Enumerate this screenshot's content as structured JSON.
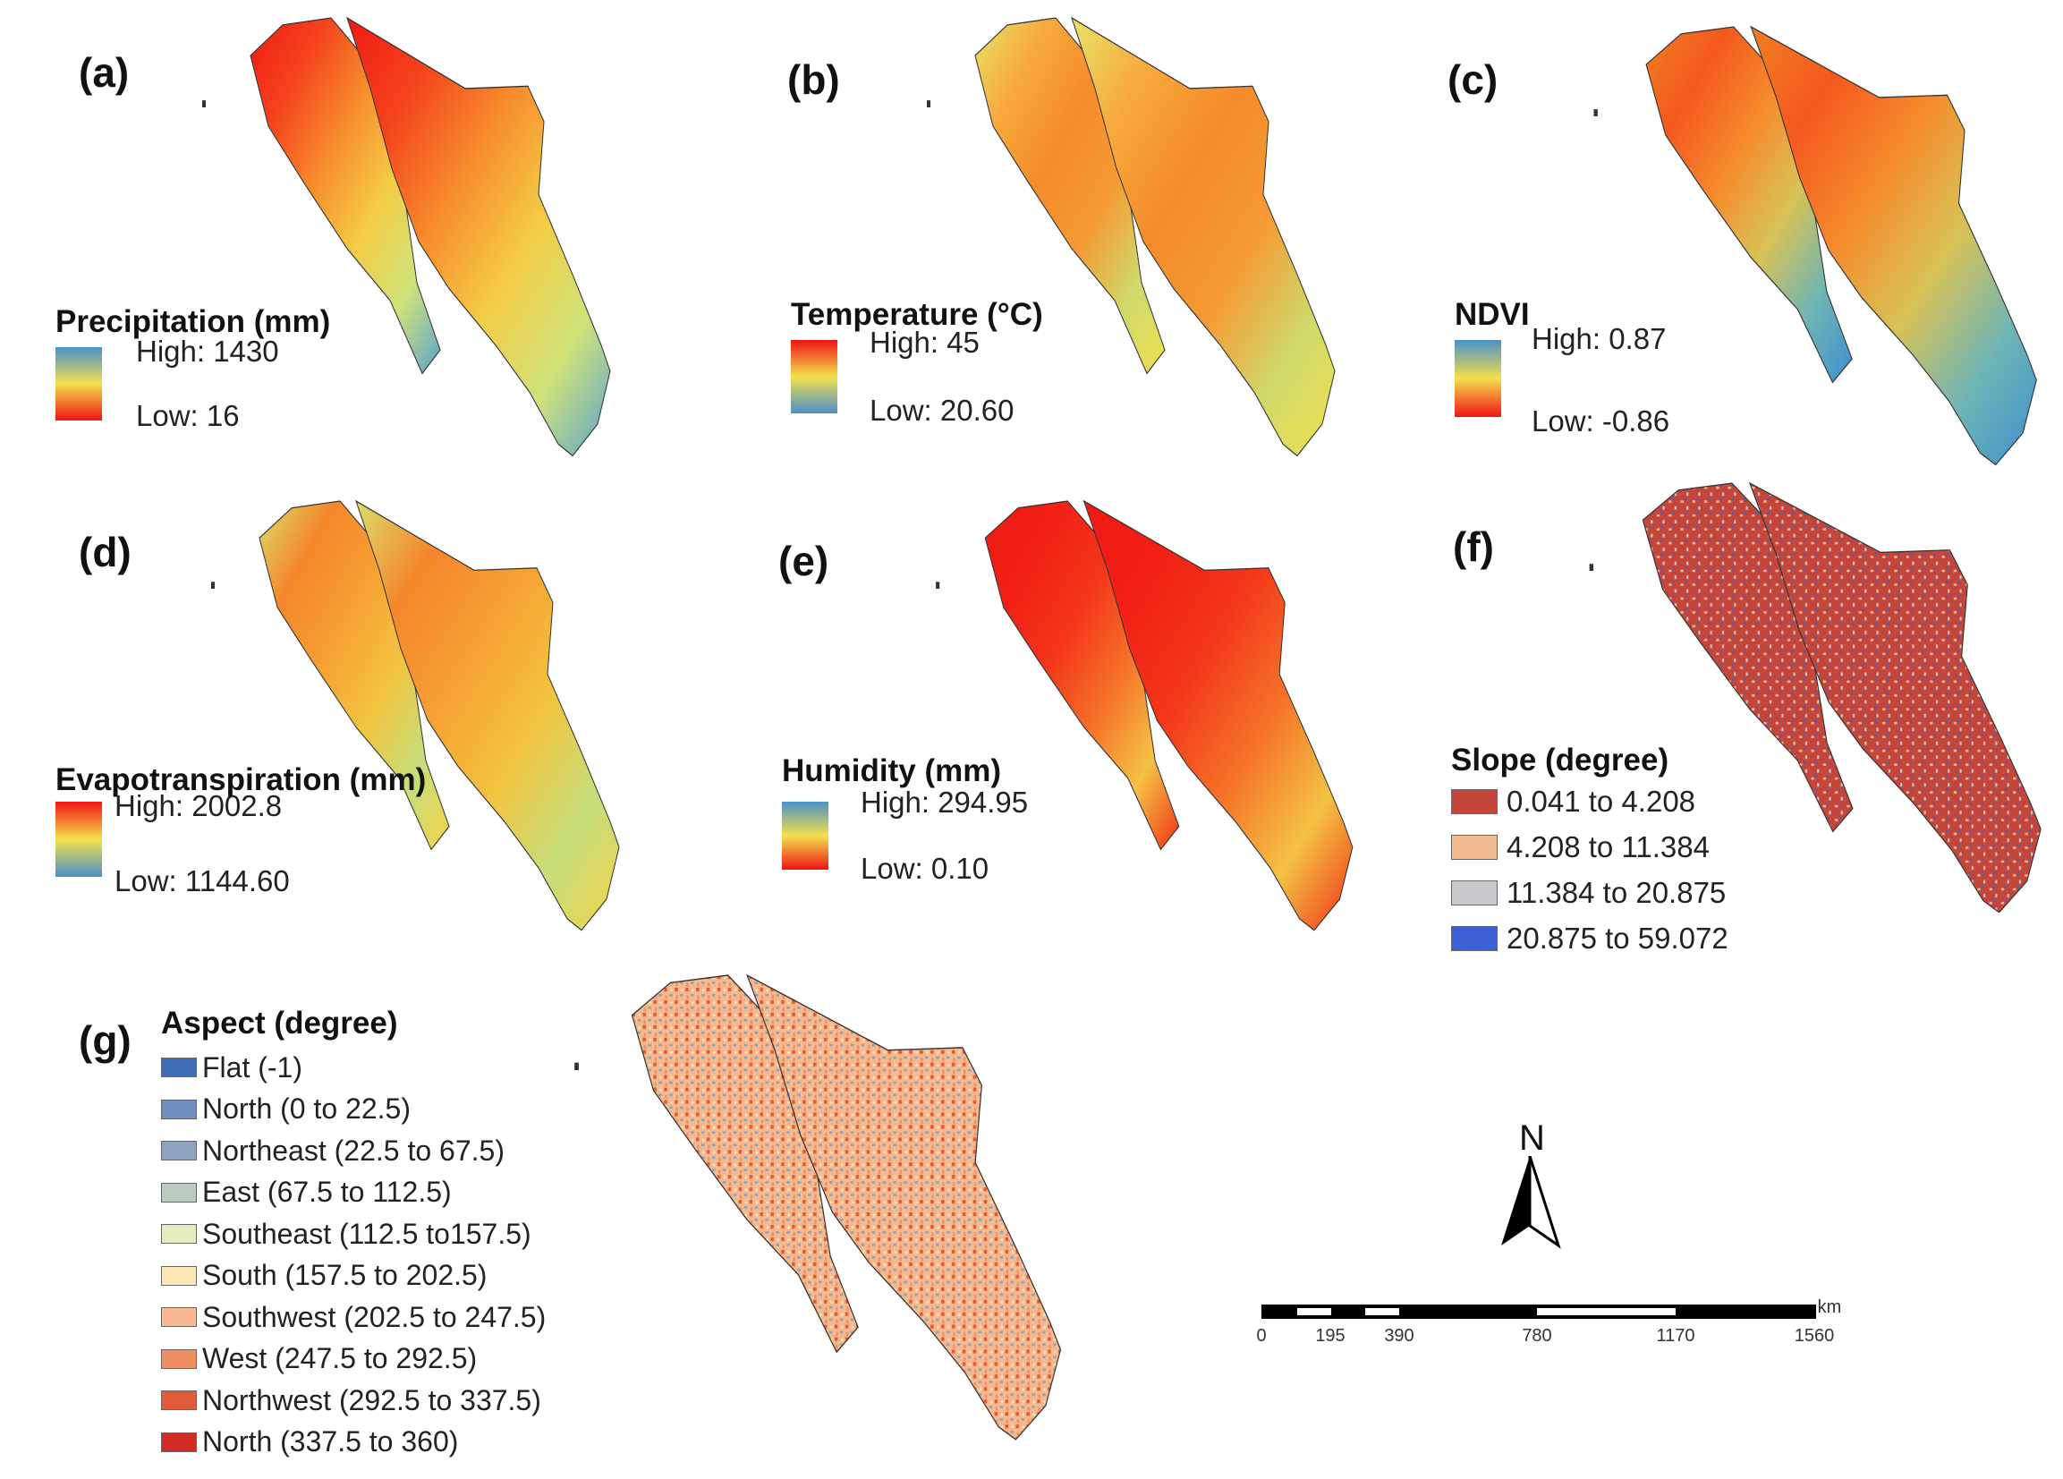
{
  "panels": [
    {
      "id": "a",
      "label": "(a)",
      "legend_title": "Precipitation (mm)",
      "high": "High: 1430",
      "low": "Low: 16",
      "ramp": [
        "#4a90c8",
        "#f4e04d",
        "#f01414"
      ],
      "map_stops": [
        "#f01a14",
        "#f4431c",
        "#f78c2d",
        "#f4cc44",
        "#cfe27a",
        "#5aa3cf"
      ]
    },
    {
      "id": "b",
      "label": "(b)",
      "legend_title": "Temperature (°C)",
      "high": "High: 45",
      "low": "Low: 20.60",
      "ramp": [
        "#f01414",
        "#f4e04d",
        "#4a90c8"
      ],
      "map_stops": [
        "#e8e36a",
        "#f7a93c",
        "#f58b2c",
        "#f59a34",
        "#cfd96a",
        "#f0e050"
      ]
    },
    {
      "id": "c",
      "label": "(c)",
      "legend_title": "NDVI",
      "high": "High: 0.87",
      "low": "Low: -0.86",
      "ramp": [
        "#4a90c8",
        "#f4e04d",
        "#f01414"
      ],
      "map_stops": [
        "#f07f22",
        "#f5581e",
        "#f58b2c",
        "#d8c256",
        "#6fb5b5",
        "#3f8fcf"
      ]
    },
    {
      "id": "d",
      "label": "(d)",
      "legend_title": "Evapotranspiration (mm)",
      "high": "High: 2002.8",
      "low": "Low: 1144.60",
      "ramp": [
        "#f01414",
        "#f4e04d",
        "#4a90c8"
      ],
      "map_stops": [
        "#d9df6a",
        "#f5862c",
        "#f6a033",
        "#f2c43f",
        "#c6dd7a",
        "#f3d24a"
      ]
    },
    {
      "id": "e",
      "label": "(e)",
      "legend_title": "Humidity (mm)",
      "high": "High: 294.95",
      "low": "Low: 0.10",
      "ramp": [
        "#4a90c8",
        "#f4e04d",
        "#f01414"
      ],
      "map_stops": [
        "#f01a14",
        "#f22016",
        "#f3361a",
        "#f57228",
        "#f4c244",
        "#f03016"
      ]
    },
    {
      "id": "f",
      "label": "(f)",
      "legend_title": "Slope (degree)"
    }
  ],
  "slope_classes": [
    {
      "label": "0.041 to 4.208",
      "color": "#c4463a"
    },
    {
      "label": "4.208 to 11.384",
      "color": "#f2b98f"
    },
    {
      "label": "11.384 to 20.875",
      "color": "#c8c8cc"
    },
    {
      "label": "20.875 to 59.072",
      "color": "#3d5fd6"
    }
  ],
  "aspect": {
    "label": "(g)",
    "title": "Aspect (degree)",
    "classes": [
      {
        "label": "Flat (-1)",
        "color": "#3f6db5"
      },
      {
        "label": "North (0 to 22.5)",
        "color": "#6f8fc0"
      },
      {
        "label": "Northeast (22.5 to 67.5)",
        "color": "#8ea3bf"
      },
      {
        "label": "East (67.5 to 112.5)",
        "color": "#bccbc0"
      },
      {
        "label": "Southeast (112.5 to157.5)",
        "color": "#e7ecc0"
      },
      {
        "label": "South (157.5 to 202.5)",
        "color": "#fbe8b6"
      },
      {
        "label": "Southwest (202.5 to 247.5)",
        "color": "#f5b98d"
      },
      {
        "label": "West (247.5 to 292.5)",
        "color": "#f08f63"
      },
      {
        "label": "Northwest (292.5 to 337.5)",
        "color": "#e05a3c"
      },
      {
        "label": "North (337.5 to 360)",
        "color": "#d22a24"
      }
    ]
  },
  "north_arrow": {
    "label": "N"
  },
  "scale_bar": {
    "unit": "km",
    "ticks": [
      "0",
      "195",
      "390",
      "780",
      "1170",
      "1560"
    ]
  }
}
